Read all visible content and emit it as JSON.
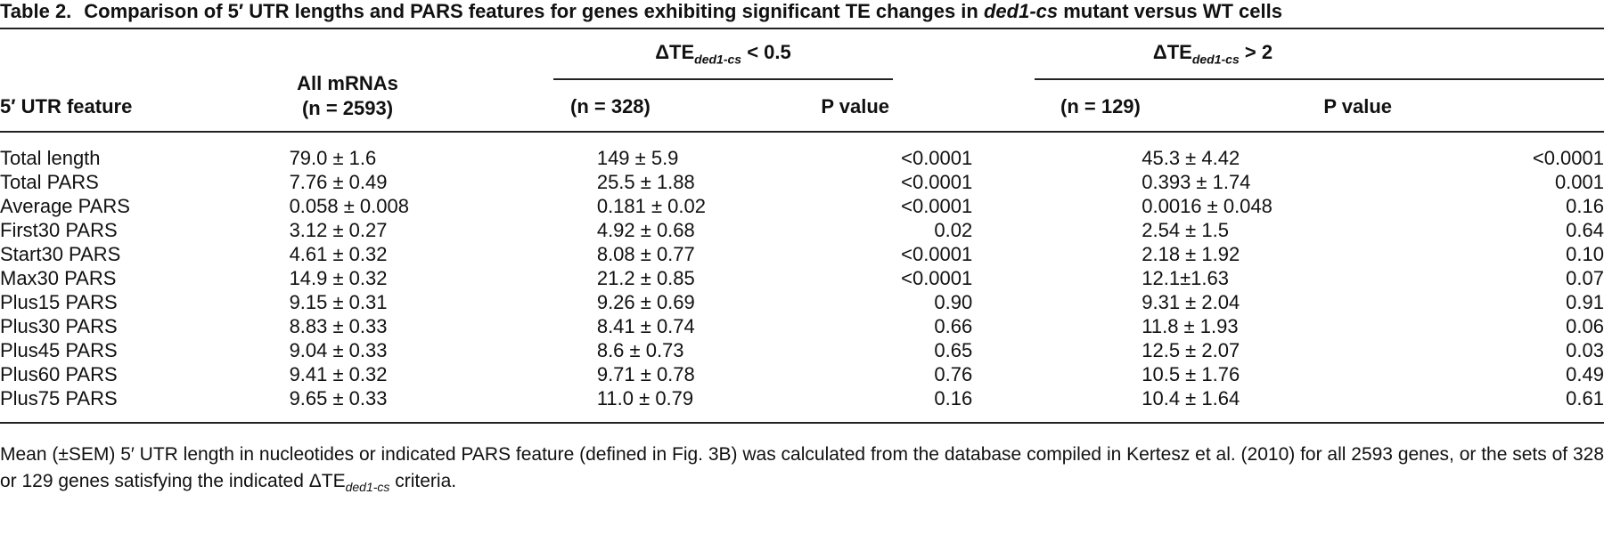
{
  "caption": {
    "label": "Table 2.",
    "text_before": "Comparison of 5′ UTR lengths and PARS features for genes exhibiting significant TE changes in ",
    "italic": "ded1-cs",
    "text_after": " mutant versus WT cells"
  },
  "header": {
    "feature": "5′ UTR feature",
    "all_mrnas_line1": "All mRNAs",
    "all_mrnas_line2": "(n = 2593)",
    "group1": {
      "prefix": "ΔTE",
      "sub": "ded1-cs",
      "cond": " < 0.5",
      "n": "(n = 328)",
      "p": "P value"
    },
    "group2": {
      "prefix": "ΔTE",
      "sub": "ded1-cs",
      "cond": " > 2",
      "n": "(n = 129)",
      "p": "P value"
    }
  },
  "rows": [
    [
      "Total length",
      "79.0 ± 1.6",
      "149 ± 5.9",
      "<0.0001",
      "45.3 ± 4.42",
      "<0.0001"
    ],
    [
      "Total PARS",
      "7.76 ± 0.49",
      "25.5 ± 1.88",
      "<0.0001",
      "0.393 ± 1.74",
      "0.001"
    ],
    [
      "Average PARS",
      "0.058 ± 0.008",
      "0.181 ± 0.02",
      "<0.0001",
      "0.0016 ± 0.048",
      "0.16"
    ],
    [
      "First30 PARS",
      "3.12 ± 0.27",
      "4.92 ± 0.68",
      "0.02",
      "2.54 ± 1.5",
      "0.64"
    ],
    [
      "Start30 PARS",
      "4.61 ± 0.32",
      "8.08 ± 0.77",
      "<0.0001",
      "2.18 ± 1.92",
      "0.10"
    ],
    [
      "Max30 PARS",
      "14.9 ± 0.32",
      "21.2 ± 0.85",
      "<0.0001",
      "12.1±1.63",
      "0.07"
    ],
    [
      "Plus15 PARS",
      "9.15 ± 0.31",
      "9.26 ± 0.69",
      "0.90",
      "9.31 ± 2.04",
      "0.91"
    ],
    [
      "Plus30 PARS",
      "8.83 ± 0.33",
      "8.41 ± 0.74",
      "0.66",
      "11.8 ± 1.93",
      "0.06"
    ],
    [
      "Plus45 PARS",
      "9.04 ± 0.33",
      "8.6 ± 0.73",
      "0.65",
      "12.5 ± 2.07",
      "0.03"
    ],
    [
      "Plus60 PARS",
      "9.41 ± 0.32",
      "9.71 ± 0.78",
      "0.76",
      "10.5 ± 1.76",
      "0.49"
    ],
    [
      "Plus75 PARS",
      "9.65 ± 0.33",
      "11.0 ± 0.79",
      "0.16",
      "10.4 ± 1.64",
      "0.61"
    ]
  ],
  "footnote": {
    "text": "Mean (±SEM) 5′ UTR length in nucleotides or indicated PARS feature (defined in Fig. 3B) was calculated from the database compiled in Kertesz et al. (2010) for all 2593 genes, or the sets of 328 or 129 genes satisfying the indicated ΔTE",
    "sub": "ded1-cs",
    "end": " criteria."
  }
}
